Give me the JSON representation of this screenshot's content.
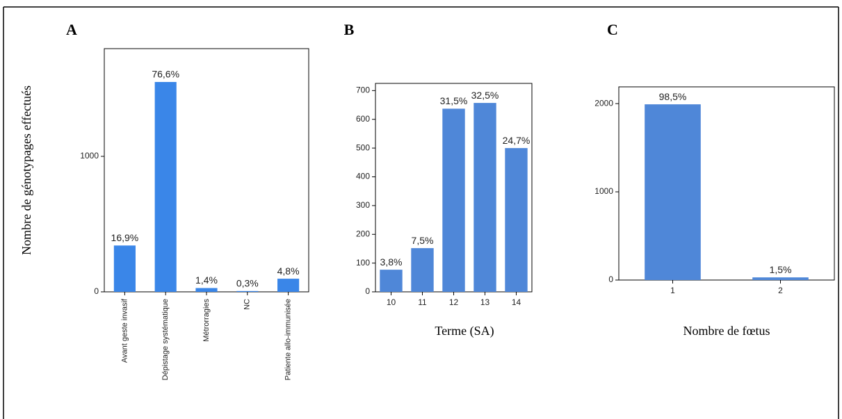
{
  "chart_data": [
    {
      "type": "bar",
      "panel_label": "A",
      "y_label": "Nombre de génotypages effectués",
      "categories": [
        "Avant geste invasif",
        "Dépistage systématique",
        "Métrorragies",
        "NC",
        "Patiente allo-immunisée"
      ],
      "values": [
        342,
        1549,
        28,
        6,
        97
      ],
      "annotations": [
        "16,9%",
        "76,6%",
        "1,4%",
        "0,3%",
        "4,8%"
      ],
      "color": "#3a86e8",
      "ylim": [
        0,
        1795
      ],
      "yticks": [
        0,
        1000
      ]
    },
    {
      "type": "bar",
      "panel_label": "B",
      "x_label": "Terme (SA)",
      "categories": [
        10,
        11,
        12,
        13,
        14
      ],
      "values": [
        77,
        152,
        637,
        657,
        500
      ],
      "annotations": [
        "3,8%",
        "7,5%",
        "31,5%",
        "32,5%",
        "24,7%"
      ],
      "color": "#4f87d8",
      "ylim": [
        0,
        725
      ],
      "yticks": [
        0,
        100,
        200,
        300,
        400,
        500,
        600,
        700
      ]
    },
    {
      "type": "bar",
      "panel_label": "C",
      "x_label": "Nombre de fœtus",
      "categories": [
        1,
        2
      ],
      "values": [
        1992,
        30
      ],
      "annotations": [
        "98,5%",
        "1,5%"
      ],
      "color": "#4f87d8",
      "ylim": [
        0,
        2190
      ],
      "yticks": [
        0,
        1000,
        2000
      ]
    }
  ]
}
